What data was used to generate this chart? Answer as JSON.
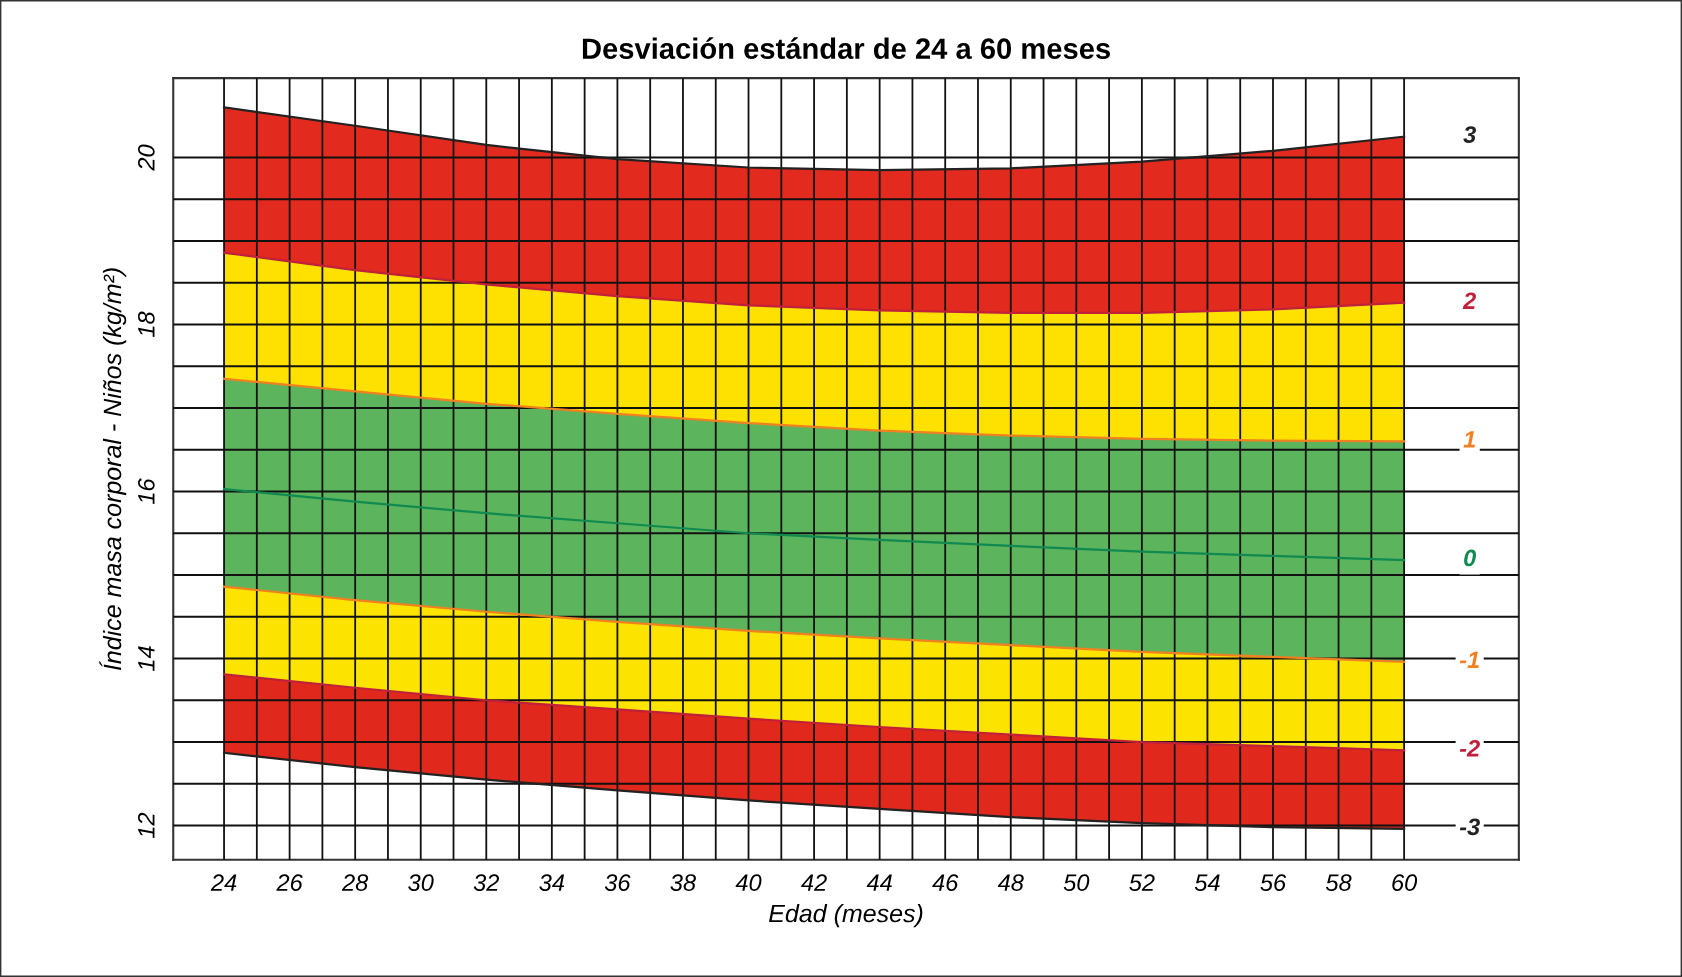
{
  "chart_data": {
    "type": "line",
    "title": "Desviación estándar de 24 a 60 meses",
    "xlabel": "Edad (meses)",
    "ylabel": "Índice masa corporal - Niños (kg/m²)",
    "x": [
      24,
      28,
      32,
      36,
      40,
      44,
      48,
      52,
      56,
      60
    ],
    "series": [
      {
        "color": "#e22b1e",
        "values": [
          null,
          null,
          null,
          null,
          null,
          null,
          null,
          null,
          null,
          null
        ],
        "lower": [
          18.86,
          18.65,
          18.48,
          18.34,
          18.23,
          18.17,
          18.14,
          18.14,
          18.18,
          18.26
        ],
        "upper": [
          20.6,
          20.38,
          20.15,
          19.98,
          19.88,
          19.85,
          19.87,
          19.95,
          20.08,
          20.25
        ]
      },
      {
        "color": "#ffe100",
        "values": [
          null,
          null,
          null,
          null,
          null,
          null,
          null,
          null,
          null,
          null
        ],
        "lower": [
          17.35,
          17.2,
          17.05,
          16.93,
          16.82,
          16.73,
          16.67,
          16.63,
          16.61,
          16.6
        ],
        "upper": [
          18.86,
          18.65,
          18.48,
          18.34,
          18.23,
          18.17,
          18.14,
          18.14,
          18.18,
          18.26
        ]
      },
      {
        "color": "#5cb45c",
        "values": [
          null,
          null,
          null,
          null,
          null,
          null,
          null,
          null,
          null,
          null
        ],
        "lower": [
          14.86,
          14.7,
          14.56,
          14.44,
          14.33,
          14.24,
          14.16,
          14.08,
          14.02,
          13.96
        ],
        "upper": [
          17.35,
          17.2,
          17.05,
          16.93,
          16.82,
          16.73,
          16.67,
          16.63,
          16.61,
          16.6
        ]
      },
      {
        "color": "#fde300",
        "values": [
          null,
          null,
          null,
          null,
          null,
          null,
          null,
          null,
          null,
          null
        ],
        "lower": [
          13.81,
          13.65,
          13.5,
          13.39,
          13.28,
          13.18,
          13.09,
          13.0,
          12.95,
          12.9
        ],
        "upper": [
          14.86,
          14.7,
          14.56,
          14.44,
          14.33,
          14.24,
          14.16,
          14.08,
          14.02,
          13.96
        ]
      },
      {
        "color": "#e0291c",
        "values": [
          null,
          null,
          null,
          null,
          null,
          null,
          null,
          null,
          null,
          null
        ],
        "lower": [
          12.87,
          12.7,
          12.55,
          12.42,
          12.3,
          12.2,
          12.1,
          12.03,
          11.98,
          11.96
        ],
        "upper": [
          13.81,
          13.65,
          13.5,
          13.39,
          13.28,
          13.18,
          13.09,
          13.0,
          12.95,
          12.9
        ]
      },
      {
        "name": "3",
        "color": "#222222",
        "values": [
          20.6,
          20.38,
          20.15,
          19.98,
          19.88,
          19.85,
          19.87,
          19.95,
          20.08,
          20.25
        ]
      },
      {
        "name": "2",
        "color": "#c0203a",
        "values": [
          18.86,
          18.65,
          18.48,
          18.34,
          18.23,
          18.17,
          18.14,
          18.14,
          18.18,
          18.26
        ]
      },
      {
        "name": "1",
        "color": "#f08020",
        "values": [
          17.35,
          17.2,
          17.05,
          16.93,
          16.82,
          16.73,
          16.67,
          16.63,
          16.61,
          16.6
        ]
      },
      {
        "name": "0",
        "color": "#108a50",
        "values": [
          16.03,
          15.88,
          15.74,
          15.62,
          15.5,
          15.42,
          15.35,
          15.28,
          15.23,
          15.18
        ]
      },
      {
        "name": "-1",
        "color": "#f08020",
        "values": [
          14.86,
          14.7,
          14.56,
          14.44,
          14.33,
          14.24,
          14.16,
          14.08,
          14.02,
          13.96
        ]
      },
      {
        "name": "-2",
        "color": "#c0203a",
        "values": [
          13.81,
          13.65,
          13.5,
          13.39,
          13.28,
          13.18,
          13.09,
          13.0,
          12.95,
          12.9
        ]
      },
      {
        "name": "-3",
        "color": "#222222",
        "values": [
          12.87,
          12.7,
          12.55,
          12.42,
          12.3,
          12.2,
          12.1,
          12.03,
          11.98,
          11.96
        ]
      }
    ],
    "xlim": [
      22.45,
      63.5
    ],
    "ylim": [
      11.59,
      20.95
    ],
    "xticks": [
      24,
      {
        "value": 25,
        "label": null
      },
      26,
      {
        "value": 27,
        "label": null
      },
      28,
      {
        "value": 29,
        "label": null
      },
      30,
      {
        "value": 31,
        "label": null
      },
      32,
      {
        "value": 33,
        "label": null
      },
      34,
      {
        "value": 35,
        "label": null
      },
      36,
      {
        "value": 37,
        "label": null
      },
      38,
      {
        "value": 39,
        "label": null
      },
      40,
      {
        "value": 41,
        "label": null
      },
      42,
      {
        "value": 43,
        "label": null
      },
      44,
      {
        "value": 45,
        "label": null
      },
      46,
      {
        "value": 47,
        "label": null
      },
      48,
      {
        "value": 49,
        "label": null
      },
      50,
      {
        "value": 51,
        "label": null
      },
      52,
      {
        "value": 53,
        "label": null
      },
      54,
      {
        "value": 55,
        "label": null
      },
      56,
      {
        "value": 57,
        "label": null
      },
      58,
      {
        "value": 59,
        "label": null
      },
      60
    ],
    "yticks": [
      12,
      {
        "value": 12.5,
        "label": null
      },
      {
        "value": 13,
        "label": null
      },
      {
        "value": 13.5,
        "label": null
      },
      14,
      {
        "value": 14.5,
        "label": null
      },
      {
        "value": 15,
        "label": null
      },
      {
        "value": 15.5,
        "label": null
      },
      16,
      {
        "value": 16.5,
        "label": null
      },
      {
        "value": 17,
        "label": null
      },
      {
        "value": 17.5,
        "label": null
      },
      18,
      {
        "value": 18.5,
        "label": null
      },
      {
        "value": 19,
        "label": null
      },
      {
        "value": 19.5,
        "label": null
      },
      20
    ],
    "grid": true,
    "marker": "none",
    "line_style": "solid"
  }
}
